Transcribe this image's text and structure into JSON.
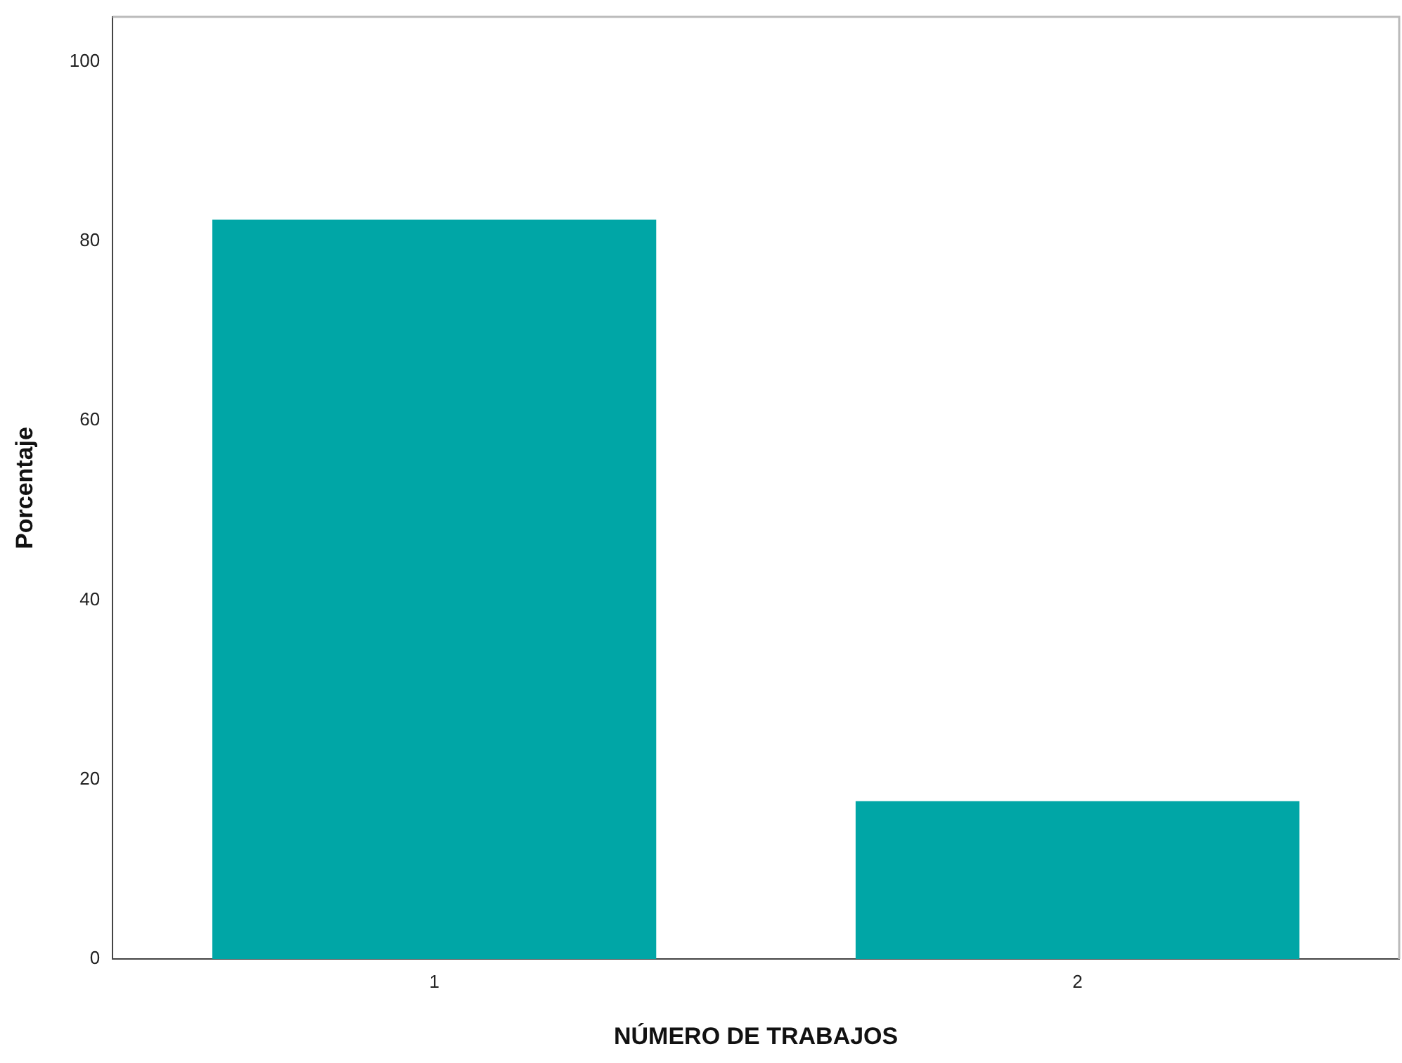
{
  "chart_data": {
    "type": "bar",
    "xlabel": "NÚMERO DE TRABAJOS",
    "ylabel": "Porcentaje",
    "categories": [
      "1",
      "2"
    ],
    "values": [
      82.4,
      17.6
    ],
    "color": "#00a6a6",
    "ylim": [
      0,
      105
    ],
    "yticks": [
      0,
      20,
      40,
      60,
      80,
      100
    ],
    "grid": false,
    "legend": false
  }
}
